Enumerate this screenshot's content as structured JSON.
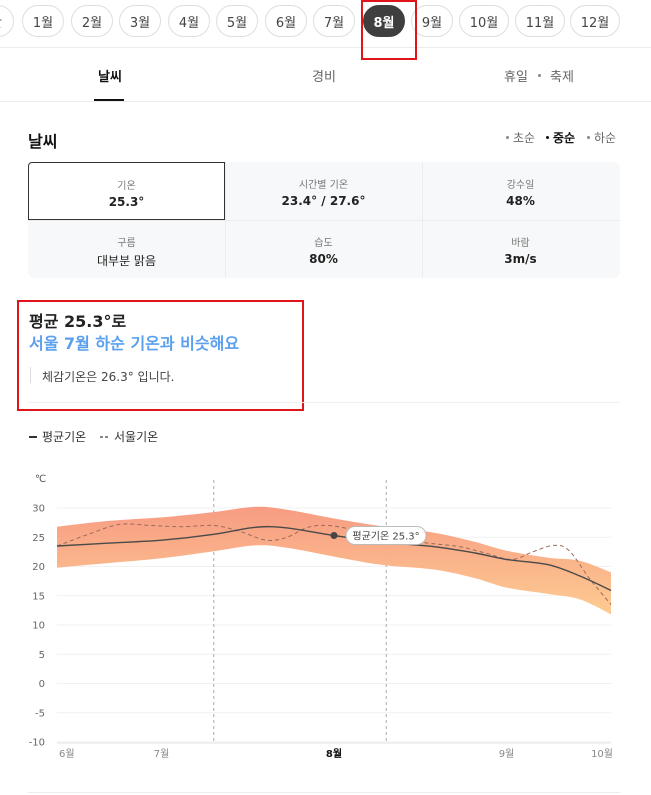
{
  "months": {
    "partial_label": "간",
    "items": [
      "1월",
      "2월",
      "3월",
      "4월",
      "5월",
      "6월",
      "7월",
      "8월",
      "9월",
      "10월",
      "11월",
      "12월"
    ],
    "selected": "8월"
  },
  "tabs": [
    {
      "label": "날씨",
      "active": true
    },
    {
      "label": "경비",
      "active": false
    },
    {
      "label": "휴일",
      "active": false
    },
    {
      "label": "축제",
      "active": false
    }
  ],
  "section": {
    "title": "날씨",
    "periods": [
      {
        "label": "초순",
        "active": false
      },
      {
        "label": "중순",
        "active": true
      },
      {
        "label": "하순",
        "active": false
      }
    ]
  },
  "stats": [
    {
      "label": "기온",
      "value": "25.3°",
      "selected": true
    },
    {
      "label": "시간별 기온",
      "value": "23.4° / 27.6°"
    },
    {
      "label": "강수일",
      "value": "48%"
    },
    {
      "label": "구름",
      "value": "대부분 맑음"
    },
    {
      "label": "습도",
      "value": "80%"
    },
    {
      "label": "바람",
      "value": "3m/s"
    }
  ],
  "summary": {
    "line1": "평균 25.3°로",
    "line2": "서울 7월 하순 기온과 비슷해요",
    "line3": "체감기온은 26.3° 입니다."
  },
  "legend": {
    "avg": "평균기온",
    "seoul": "서울기온"
  },
  "colors": {
    "accent_blue": "#5aa0ef",
    "band_top": "#f7967c",
    "band_bottom": "#fdc98c",
    "highlight_red": "#e0151a",
    "selected_chip": "#3f3f3f"
  },
  "chart_data": {
    "type": "line",
    "unit_label": "℃",
    "ylim": [
      -10,
      30
    ],
    "yticks": [
      30,
      25,
      20,
      15,
      10,
      5,
      0,
      -5,
      -10
    ],
    "x_tick_labels": [
      "6월",
      "7월",
      "8월",
      "9월",
      "10월"
    ],
    "x_tick_positions": [
      0,
      1,
      2.65,
      4.3,
      5.3
    ],
    "highlight_x_label": "8월",
    "xlim": [
      0,
      5.3
    ],
    "band": {
      "x": [
        0,
        0.5,
        1.0,
        1.5,
        1.9,
        2.2,
        2.65,
        3.1,
        3.6,
        4.0,
        4.3,
        4.7,
        5.0,
        5.3
      ],
      "upper": [
        26.8,
        27.8,
        28.4,
        29.3,
        30.2,
        29.7,
        28.2,
        26.9,
        25.8,
        24.2,
        22.7,
        21.5,
        21.0,
        19.0
      ],
      "lower": [
        19.8,
        20.6,
        21.4,
        22.6,
        23.6,
        23.2,
        21.7,
        20.3,
        19.5,
        18.0,
        16.4,
        15.3,
        14.4,
        11.8
      ]
    },
    "series": [
      {
        "name": "평균기온",
        "x": [
          0,
          0.5,
          1.0,
          1.5,
          1.9,
          2.2,
          2.65,
          3.1,
          3.6,
          4.0,
          4.3,
          4.7,
          5.0,
          5.3
        ],
        "values": [
          23.5,
          24.0,
          24.5,
          25.5,
          26.7,
          26.6,
          25.3,
          24.2,
          23.4,
          22.3,
          21.2,
          20.3,
          18.4,
          15.9
        ]
      },
      {
        "name": "서울기온",
        "x": [
          0,
          0.3,
          0.6,
          0.9,
          1.2,
          1.5,
          1.75,
          2.0,
          2.2,
          2.4,
          2.6,
          2.85,
          3.1,
          3.35,
          3.6,
          3.85,
          4.1,
          4.35,
          4.55,
          4.75,
          4.9,
          5.1,
          5.3
        ],
        "values": [
          23.5,
          25.5,
          27.2,
          27.0,
          26.8,
          27.0,
          26.0,
          24.5,
          25.0,
          26.7,
          27.0,
          26.2,
          25.0,
          24.4,
          23.9,
          23.4,
          22.3,
          21.2,
          22.5,
          23.6,
          22.7,
          17.8,
          13.5
        ]
      }
    ],
    "marker": {
      "x": 2.65,
      "value": 25.3,
      "label": "평균기온 25.3°"
    }
  }
}
